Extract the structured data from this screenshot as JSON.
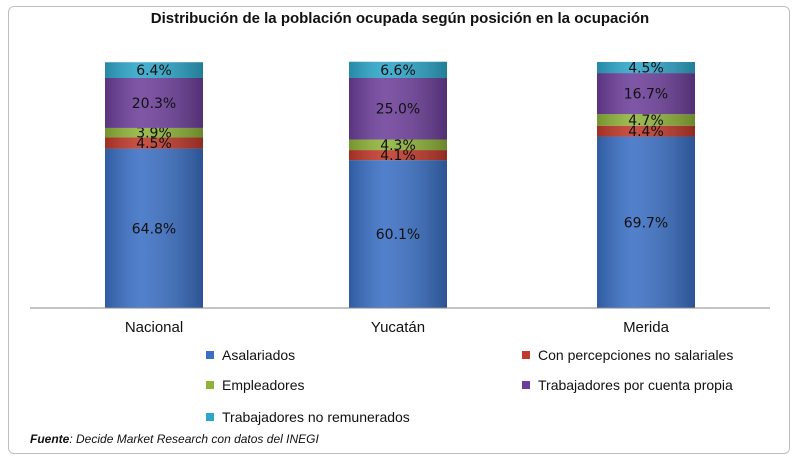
{
  "chart_data": {
    "type": "bar",
    "stacked": true,
    "title": "Distribución de la población ocupada según posición en la ocupación",
    "categories": [
      "Nacional",
      "Yucatán",
      "Merida"
    ],
    "series": [
      {
        "name": "Asalariados",
        "color": "#3a6fc4",
        "values": [
          64.8,
          60.1,
          69.7
        ],
        "labels": [
          "64.8%",
          "60.1%",
          "69.7%"
        ]
      },
      {
        "name": "Con percepciones no salariales",
        "color": "#c0392b",
        "values": [
          4.5,
          4.1,
          4.4
        ],
        "labels": [
          "4.5%",
          "4.1%",
          "4.4%"
        ]
      },
      {
        "name": "Empleadores",
        "color": "#8fb339",
        "values": [
          3.9,
          4.3,
          4.7
        ],
        "labels": [
          "3.9%",
          "4.3%",
          "4.7%"
        ]
      },
      {
        "name": "Trabajadores por cuenta propia",
        "color": "#6d3f9a",
        "values": [
          20.3,
          25.0,
          16.7
        ],
        "labels": [
          "20.3%",
          "25.0%",
          "16.7%"
        ]
      },
      {
        "name": "Trabajadores no remunerados",
        "color": "#2ea6c9",
        "values": [
          6.4,
          6.6,
          4.5
        ],
        "labels": [
          "6.4%",
          "6.6%",
          "4.5%"
        ]
      }
    ],
    "ylim": [
      0,
      100
    ],
    "grid": false,
    "legend_position": "bottom"
  },
  "source": {
    "label": "Fuente",
    "text": ": Decide Market Research con datos del INEGI"
  }
}
